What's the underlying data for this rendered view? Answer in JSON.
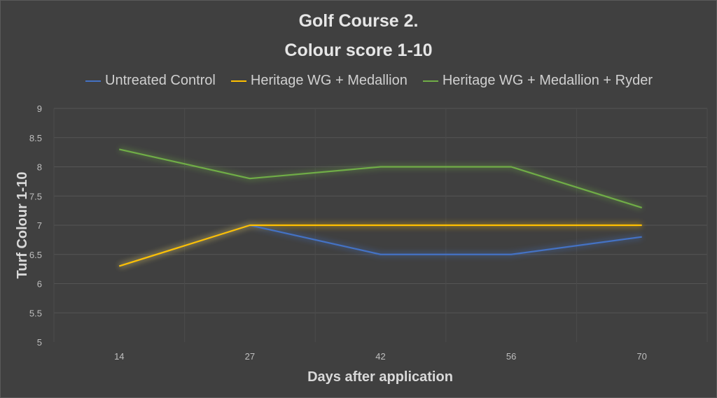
{
  "chart_data": {
    "type": "line",
    "title": "Golf Course 2.",
    "subtitle": "Colour score 1-10",
    "xlabel": "Days after application",
    "ylabel": "Turf Colour 1-10",
    "categories": [
      "14",
      "27",
      "42",
      "56",
      "70"
    ],
    "ylim": [
      5,
      9
    ],
    "yticks": [
      "5",
      "5.5",
      "6",
      "6.5",
      "7",
      "7.5",
      "8",
      "8.5",
      "9"
    ],
    "grid": true,
    "legend": "top",
    "series": [
      {
        "name": "Untreated Control",
        "color": "#4472c4",
        "values": [
          6.3,
          7,
          6.5,
          6.5,
          6.8
        ]
      },
      {
        "name": "Heritage WG + Medallion",
        "color": "#ffc000",
        "values": [
          6.3,
          7,
          7,
          7,
          7
        ]
      },
      {
        "name": "Heritage WG + Medallion + Ryder",
        "color": "#70ad47",
        "values": [
          8.3,
          7.8,
          8,
          8,
          7.3
        ]
      }
    ]
  }
}
